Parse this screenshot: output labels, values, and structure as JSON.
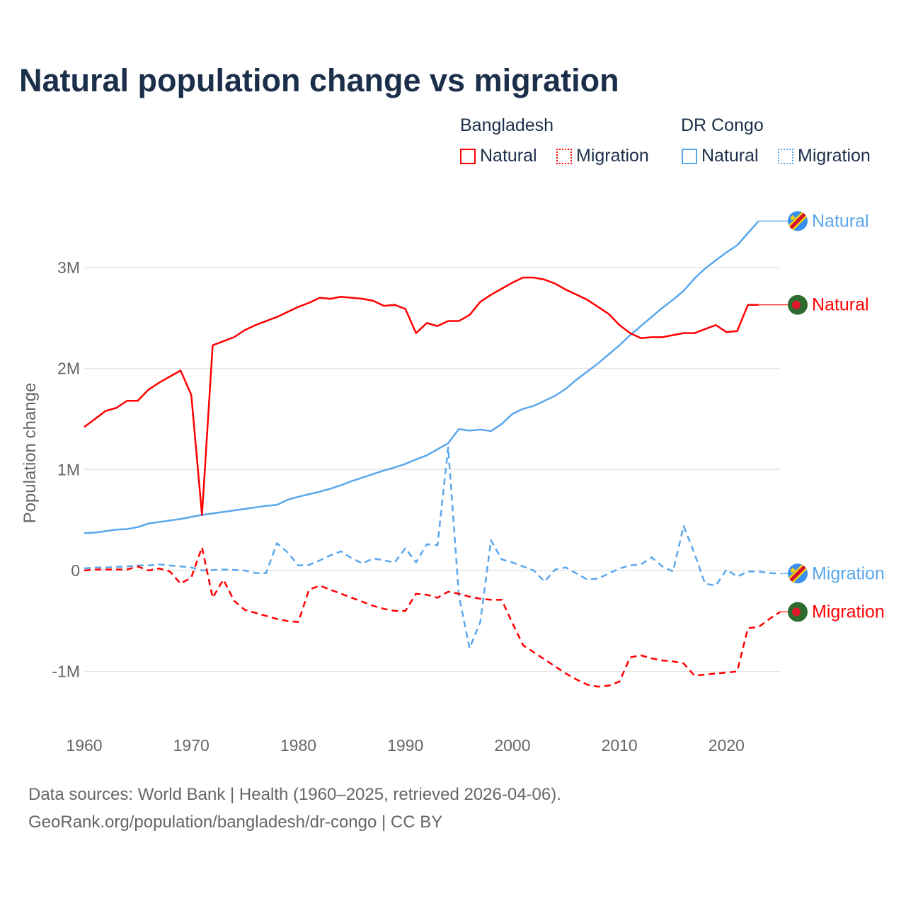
{
  "chart_data": {
    "type": "line",
    "title": "Natural population change vs migration",
    "ylabel": "Population change",
    "xlabel": "",
    "xlim": [
      1960,
      2025
    ],
    "ylim": [
      -1500000,
      3600000
    ],
    "x_ticks": [
      1960,
      1970,
      1980,
      1990,
      2000,
      2010,
      2020
    ],
    "y_ticks": [
      {
        "v": -1000000,
        "label": "-1M"
      },
      {
        "v": 0,
        "label": "0"
      },
      {
        "v": 1000000,
        "label": "1M"
      },
      {
        "v": 2000000,
        "label": "2M"
      },
      {
        "v": 3000000,
        "label": "3M"
      }
    ],
    "grid": true,
    "legend": {
      "placement": "top-right",
      "groups": [
        {
          "name": "Bangladesh",
          "items": [
            "Natural",
            "Migration"
          ]
        },
        {
          "name": "DR Congo",
          "items": [
            "Natural",
            "Migration"
          ]
        }
      ]
    },
    "series": [
      {
        "name": "Bangladesh Natural",
        "label": "Natural",
        "country": "Bangladesh",
        "color": "#ff0000",
        "dash": false,
        "start": 1960,
        "values_m": [
          1.42,
          1.5,
          1.58,
          1.61,
          1.68,
          1.68,
          1.79,
          1.86,
          1.92,
          1.98,
          1.74,
          0.55,
          2.23,
          2.27,
          2.31,
          2.38,
          2.43,
          2.47,
          2.51,
          2.56,
          2.61,
          2.65,
          2.7,
          2.69,
          2.71,
          2.7,
          2.69,
          2.67,
          2.62,
          2.63,
          2.59,
          2.35,
          2.45,
          2.42,
          2.47,
          2.47,
          2.53,
          2.66,
          2.73,
          2.79,
          2.85,
          2.9,
          2.9,
          2.88,
          2.84,
          2.78,
          2.73,
          2.68,
          2.61,
          2.54,
          2.43,
          2.35,
          2.3,
          2.31,
          2.31,
          2.33,
          2.35,
          2.35,
          2.39,
          2.43,
          2.36,
          2.37,
          2.63,
          2.63
        ]
      },
      {
        "name": "Bangladesh Migration",
        "label": "Migration",
        "country": "Bangladesh",
        "color": "#ff0000",
        "dash": true,
        "start": 1960,
        "values_m": [
          0.0,
          0.01,
          0.01,
          0.01,
          0.01,
          0.04,
          0.0,
          0.02,
          -0.01,
          -0.13,
          -0.07,
          0.23,
          -0.27,
          -0.09,
          -0.3,
          -0.39,
          -0.42,
          -0.45,
          -0.48,
          -0.5,
          -0.51,
          -0.19,
          -0.15,
          -0.19,
          -0.23,
          -0.27,
          -0.31,
          -0.35,
          -0.38,
          -0.4,
          -0.4,
          -0.23,
          -0.24,
          -0.27,
          -0.21,
          -0.23,
          -0.26,
          -0.28,
          -0.29,
          -0.29,
          -0.52,
          -0.74,
          -0.81,
          -0.88,
          -0.95,
          -1.02,
          -1.08,
          -1.13,
          -1.15,
          -1.14,
          -1.1,
          -0.86,
          -0.84,
          -0.87,
          -0.89,
          -0.9,
          -0.92,
          -1.04,
          -1.03,
          -1.02,
          -1.01,
          -1.0,
          -0.57,
          -0.56,
          -0.48,
          -0.41
        ]
      },
      {
        "name": "DR Congo Natural",
        "label": "Natural",
        "country": "DR Congo",
        "color": "#5aa7ec",
        "dash": false,
        "start": 1960,
        "values_m": [
          0.37,
          0.375,
          0.39,
          0.405,
          0.41,
          0.43,
          0.465,
          0.48,
          0.495,
          0.51,
          0.53,
          0.55,
          0.565,
          0.58,
          0.595,
          0.61,
          0.625,
          0.64,
          0.65,
          0.7,
          0.73,
          0.755,
          0.78,
          0.81,
          0.845,
          0.885,
          0.92,
          0.955,
          0.99,
          1.02,
          1.055,
          1.1,
          1.14,
          1.2,
          1.26,
          1.4,
          1.385,
          1.395,
          1.38,
          1.45,
          1.55,
          1.6,
          1.63,
          1.68,
          1.73,
          1.8,
          1.89,
          1.97,
          2.05,
          2.14,
          2.23,
          2.33,
          2.42,
          2.51,
          2.6,
          2.68,
          2.77,
          2.89,
          2.99,
          3.07,
          3.15,
          3.22,
          3.34,
          3.46
        ]
      },
      {
        "name": "DR Congo Migration",
        "label": "Migration",
        "country": "DR Congo",
        "color": "#5aa7ec",
        "dash": true,
        "start": 1960,
        "values_m": [
          0.02,
          0.03,
          0.03,
          0.035,
          0.04,
          0.05,
          0.05,
          0.06,
          0.05,
          0.04,
          0.03,
          0.0,
          0.005,
          0.01,
          0.005,
          0.0,
          -0.025,
          -0.025,
          0.27,
          0.18,
          0.05,
          0.055,
          0.1,
          0.15,
          0.19,
          0.12,
          0.07,
          0.12,
          0.1,
          0.08,
          0.22,
          0.08,
          0.26,
          0.25,
          1.22,
          -0.25,
          -0.77,
          -0.51,
          0.3,
          0.11,
          0.08,
          0.04,
          0.0,
          -0.11,
          0.01,
          0.03,
          -0.03,
          -0.09,
          -0.08,
          -0.03,
          0.02,
          0.05,
          0.06,
          0.13,
          0.04,
          -0.01,
          0.44,
          0.17,
          -0.13,
          -0.15,
          0.01,
          -0.06,
          -0.01,
          -0.01,
          -0.025,
          -0.03
        ]
      }
    ]
  },
  "footer": {
    "line1": "Data sources: World Bank | Health (1960–2025, retrieved 2026-04-06).",
    "line2": "GeoRank.org/population/bangladesh/dr-congo | CC BY"
  },
  "colors": {
    "bangladesh": "#ff0000",
    "drcongo": "#5aa7ec",
    "title": "#1c2f4a"
  }
}
